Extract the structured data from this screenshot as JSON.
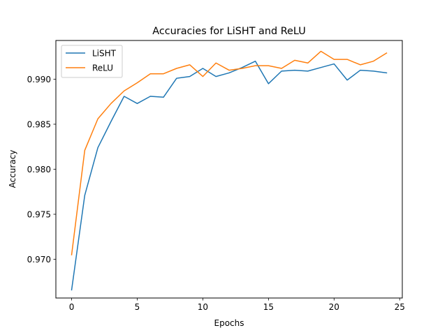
{
  "chart_data": {
    "type": "line",
    "title": "Accuracies for LiSHT and ReLU",
    "xlabel": "Epochs",
    "ylabel": "Accuracy",
    "xlim": [
      -1.2,
      25.2
    ],
    "ylim": [
      0.9657,
      0.9943
    ],
    "xticks": [
      0,
      5,
      10,
      15,
      20,
      25
    ],
    "yticks": [
      0.97,
      0.975,
      0.98,
      0.985,
      0.99
    ],
    "ytick_labels": [
      "0.970",
      "0.975",
      "0.980",
      "0.985",
      "0.990"
    ],
    "grid": false,
    "legend_position": "top-left",
    "x": [
      0,
      1,
      2,
      3,
      4,
      5,
      6,
      7,
      8,
      9,
      10,
      11,
      12,
      13,
      14,
      15,
      16,
      17,
      18,
      19,
      20,
      21,
      22,
      23,
      24
    ],
    "series": [
      {
        "name": "LiSHT",
        "color": "#1f77b4",
        "values": [
          0.9666,
          0.9771,
          0.9824,
          0.9853,
          0.9881,
          0.9873,
          0.9881,
          0.988,
          0.9901,
          0.9903,
          0.9912,
          0.9903,
          0.9907,
          0.9913,
          0.992,
          0.9895,
          0.9909,
          0.991,
          0.9909,
          0.9913,
          0.9917,
          0.9899,
          0.991,
          0.9909,
          0.9907
        ]
      },
      {
        "name": "ReLU",
        "color": "#ff7f0e",
        "values": [
          0.9705,
          0.9821,
          0.9856,
          0.9873,
          0.9887,
          0.9896,
          0.9906,
          0.9906,
          0.9912,
          0.9916,
          0.9903,
          0.9918,
          0.991,
          0.9912,
          0.9915,
          0.9915,
          0.9912,
          0.9921,
          0.9918,
          0.9931,
          0.9922,
          0.9922,
          0.9916,
          0.992,
          0.9929
        ]
      }
    ]
  }
}
